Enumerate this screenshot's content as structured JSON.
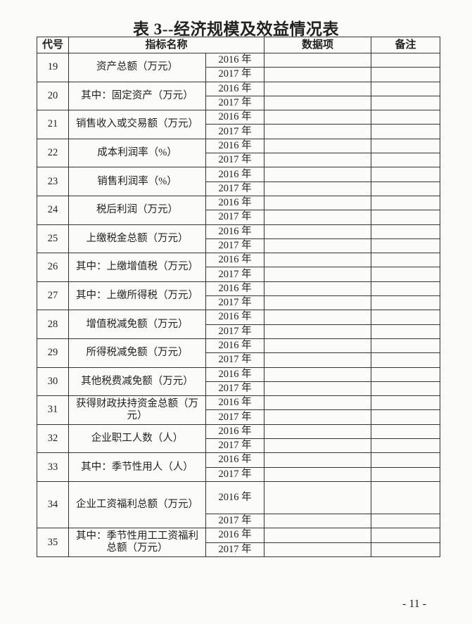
{
  "title": "表 3--经济规模及效益情况表",
  "headers": {
    "code": "代号",
    "name": "指标名称",
    "data": "数据项",
    "note": "备注"
  },
  "years": [
    "2016 年",
    "2017 年"
  ],
  "rows": [
    {
      "code": "19",
      "name": "资产总额（万元）"
    },
    {
      "code": "20",
      "name": "其中：固定资产（万元）"
    },
    {
      "code": "21",
      "name": "销售收入或交易额（万元）"
    },
    {
      "code": "22",
      "name": "成本利润率（%）"
    },
    {
      "code": "23",
      "name": "销售利润率（%）"
    },
    {
      "code": "24",
      "name": "税后利润（万元）"
    },
    {
      "code": "25",
      "name": "上缴税金总额（万元）"
    },
    {
      "code": "26",
      "name": "其中：上缴增值税（万元）"
    },
    {
      "code": "27",
      "name": "其中：上缴所得税（万元）"
    },
    {
      "code": "28",
      "name": "增值税减免额（万元）"
    },
    {
      "code": "29",
      "name": "所得税减免额（万元）"
    },
    {
      "code": "30",
      "name": "其他税费减免额（万元）"
    },
    {
      "code": "31",
      "name": "获得财政扶持资金总额（万元）"
    },
    {
      "code": "32",
      "name": "企业职工人数（人）"
    },
    {
      "code": "33",
      "name": "其中：季节性用人（人）"
    },
    {
      "code": "34",
      "name": "企业工资福利总额（万元）"
    },
    {
      "code": "35",
      "name": "其中：季节性用工工资福利总额（万元）"
    }
  ],
  "page_number": "- 11 -"
}
